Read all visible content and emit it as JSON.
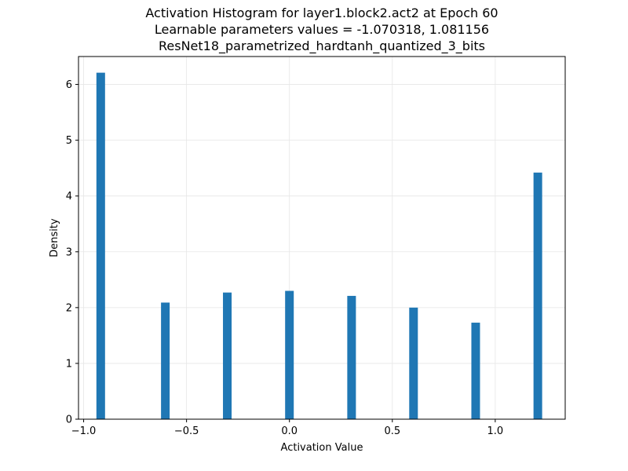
{
  "chart_data": {
    "type": "bar",
    "title_lines": [
      "Activation Histogram for layer1.block2.act2 at Epoch 60",
      "Learnable parameters values = -1.070318, 1.081156",
      "ResNet18_parametrized_hardtanh_quantized_3_bits"
    ],
    "xlabel": "Activation Value",
    "ylabel": "Density",
    "xlim": [
      -1.025,
      1.34
    ],
    "ylim": [
      0,
      6.5
    ],
    "xticks": [
      -1.0,
      -0.5,
      0.0,
      0.5,
      1.0
    ],
    "xtick_labels": [
      "−1.0",
      "−0.5",
      "0.0",
      "0.5",
      "1.0"
    ],
    "yticks": [
      0,
      1,
      2,
      3,
      4,
      5,
      6
    ],
    "ytick_labels": [
      "0",
      "1",
      "2",
      "3",
      "4",
      "5",
      "6"
    ],
    "grid": true,
    "bar_color": "#1f77b4",
    "bar_width": 0.042,
    "bars": [
      {
        "x": -0.917,
        "value": 6.21
      },
      {
        "x": -0.603,
        "value": 2.09
      },
      {
        "x": -0.302,
        "value": 2.27
      },
      {
        "x": 0.0,
        "value": 2.3
      },
      {
        "x": 0.302,
        "value": 2.21
      },
      {
        "x": 0.603,
        "value": 2.0
      },
      {
        "x": 0.905,
        "value": 1.73
      },
      {
        "x": 1.207,
        "value": 4.42
      }
    ]
  }
}
